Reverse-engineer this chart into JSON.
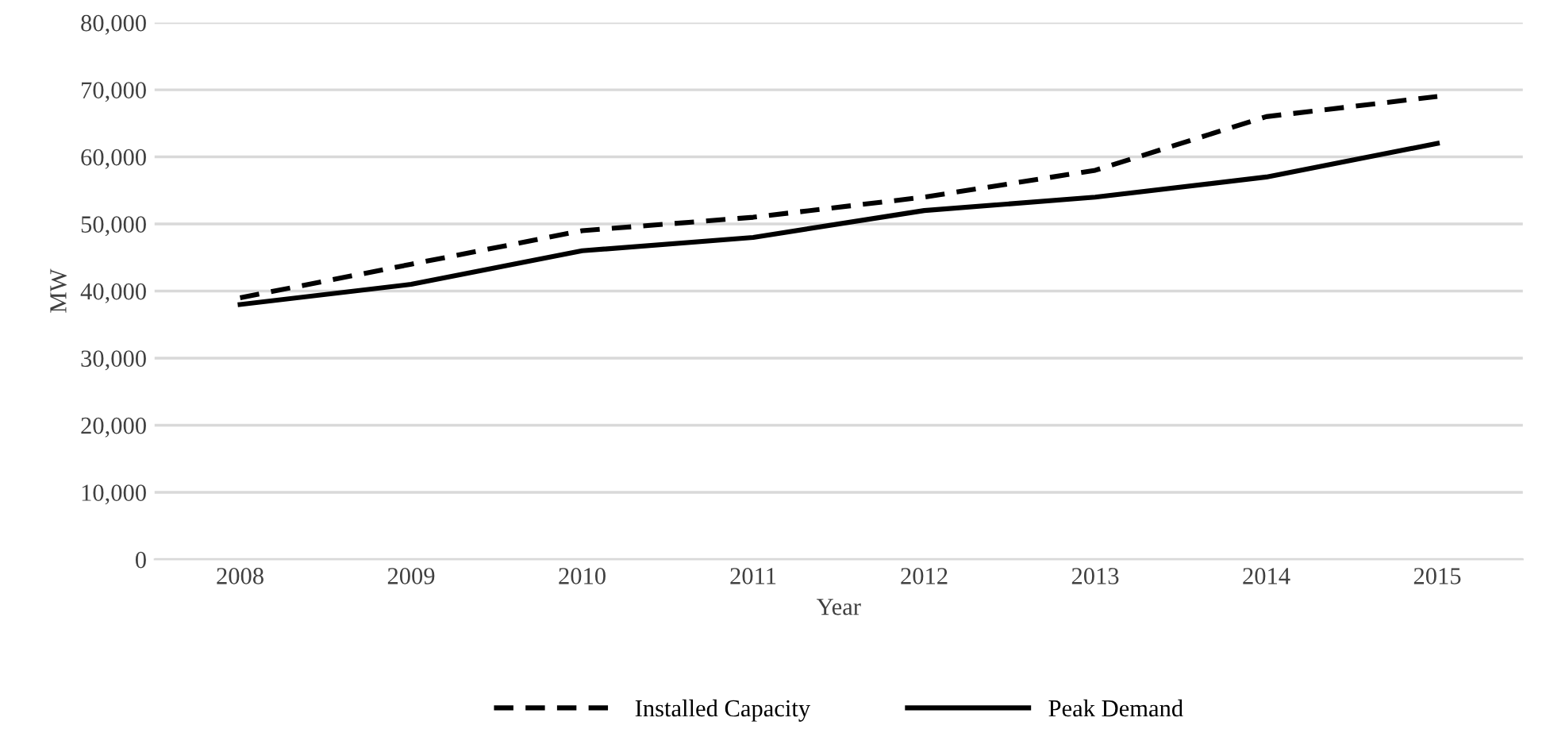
{
  "chart_data": {
    "type": "line",
    "xlabel": "Year",
    "ylabel": "MW",
    "categories": [
      "2008",
      "2009",
      "2010",
      "2011",
      "2012",
      "2013",
      "2014",
      "2015"
    ],
    "series": [
      {
        "name": "Installed Capacity",
        "color": "#000000",
        "line_style": "dashed",
        "values": [
          39000,
          44000,
          49000,
          51000,
          54000,
          58000,
          66000,
          69000
        ]
      },
      {
        "name": "Peak Demand",
        "color": "#000000",
        "line_style": "solid",
        "values": [
          38000,
          41000,
          46000,
          48000,
          52000,
          54000,
          57000,
          62000
        ]
      }
    ],
    "ylim": [
      0,
      80000
    ],
    "yticks": [
      {
        "value": 0,
        "label": "0"
      },
      {
        "value": 10000,
        "label": "10,000"
      },
      {
        "value": 20000,
        "label": "20,000"
      },
      {
        "value": 30000,
        "label": "30,000"
      },
      {
        "value": 40000,
        "label": "40,000"
      },
      {
        "value": 50000,
        "label": "50,000"
      },
      {
        "value": 60000,
        "label": "60,000"
      },
      {
        "value": 70000,
        "label": "70,000"
      },
      {
        "value": 80000,
        "label": "80,000"
      }
    ],
    "grid": "y",
    "legend": "bottom"
  }
}
